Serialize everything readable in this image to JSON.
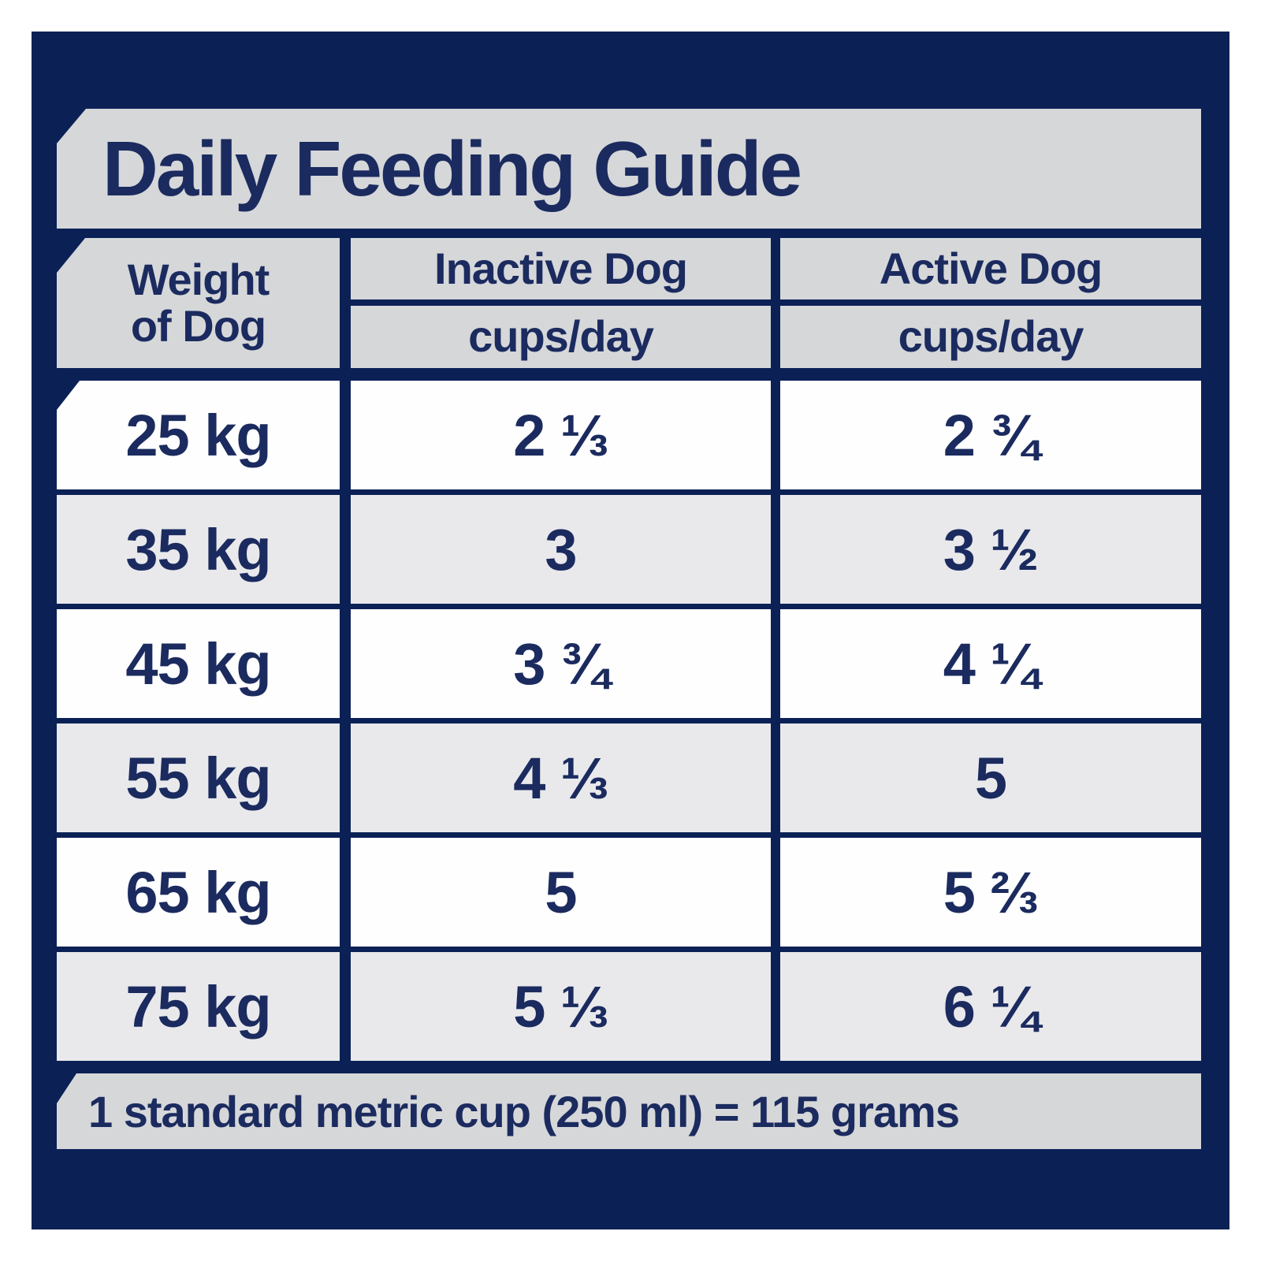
{
  "title": "Daily Feeding Guide",
  "colors": {
    "panel_navy": "#0b2156",
    "text_navy": "#1b2b5f",
    "band_gray": "#d6d7d9",
    "row_alt_gray": "#e9e9ec",
    "row_white": "#fefefe"
  },
  "table": {
    "weight_header_line1": "Weight",
    "weight_header_line2": "of Dog",
    "columns": [
      {
        "label": "Inactive Dog",
        "sub": "cups/day"
      },
      {
        "label": "Active Dog",
        "sub": "cups/day"
      }
    ],
    "rows": [
      {
        "weight": "25 kg",
        "inactive": "2 ⅓",
        "active": "2 ¾"
      },
      {
        "weight": "35 kg",
        "inactive": "3",
        "active": "3 ½"
      },
      {
        "weight": "45 kg",
        "inactive": "3 ¾",
        "active": "4 ¼"
      },
      {
        "weight": "55 kg",
        "inactive": "4 ⅓",
        "active": "5"
      },
      {
        "weight": "65 kg",
        "inactive": "5",
        "active": "5 ⅔"
      },
      {
        "weight": "75 kg",
        "inactive": "5 ⅓",
        "active": "6 ¼"
      }
    ]
  },
  "footer_note": "1 standard metric cup (250 ml) = 115 grams",
  "chart_data": {
    "type": "table",
    "title": "Daily Feeding Guide",
    "categories": [
      "25 kg",
      "35 kg",
      "45 kg",
      "55 kg",
      "65 kg",
      "75 kg"
    ],
    "series": [
      {
        "name": "Inactive Dog (cups/day)",
        "values": [
          "2 1/3",
          "3",
          "3 3/4",
          "4 1/3",
          "5",
          "5 1/3"
        ]
      },
      {
        "name": "Active Dog (cups/day)",
        "values": [
          "2 3/4",
          "3 1/2",
          "4 1/4",
          "5",
          "5 2/3",
          "6 1/4"
        ]
      }
    ],
    "note": "1 standard metric cup (250 ml) = 115 grams"
  }
}
